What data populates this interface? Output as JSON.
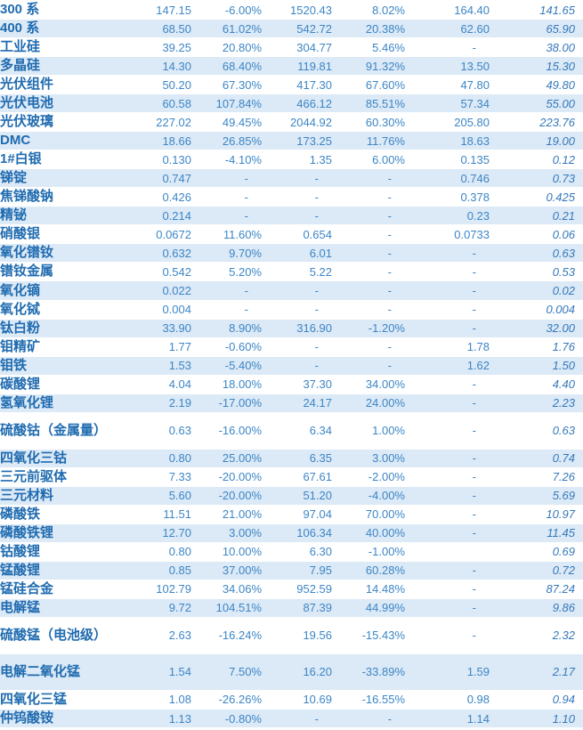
{
  "colors": {
    "row_band": "#DCE9F6",
    "label_text": "#1F6BB0",
    "value_text": "#3C86C6",
    "italic_value_text": "#3579BB"
  },
  "table": {
    "rows": [
      {
        "name": "300 系",
        "values": [
          "147.15",
          "-6.00%",
          "1520.43",
          "8.02%",
          "164.40",
          "141.65"
        ]
      },
      {
        "name": "400 系",
        "values": [
          "68.50",
          "61.02%",
          "542.72",
          "20.38%",
          "62.60",
          "65.90"
        ]
      },
      {
        "name": "工业硅",
        "values": [
          "39.25",
          "20.80%",
          "304.77",
          "5.46%",
          "-",
          "38.00"
        ]
      },
      {
        "name": "多晶硅",
        "values": [
          "14.30",
          "68.40%",
          "119.81",
          "91.32%",
          "13.50",
          "15.30"
        ]
      },
      {
        "name": "光伏组件",
        "values": [
          "50.20",
          "67.30%",
          "417.30",
          "67.60%",
          "47.80",
          "49.80"
        ]
      },
      {
        "name": "光伏电池",
        "values": [
          "60.58",
          "107.84%",
          "466.12",
          "85.51%",
          "57.34",
          "55.00"
        ]
      },
      {
        "name": "光伏玻璃",
        "values": [
          "227.02",
          "49.45%",
          "2044.92",
          "60.30%",
          "205.80",
          "223.76"
        ]
      },
      {
        "name": "DMC",
        "values": [
          "18.66",
          "26.85%",
          "173.25",
          "11.76%",
          "18.63",
          "19.00"
        ]
      },
      {
        "name": "1#白银",
        "values": [
          "0.130",
          "-4.10%",
          "1.35",
          "6.00%",
          "0.135",
          "0.12"
        ]
      },
      {
        "name": "锑锭",
        "values": [
          "0.747",
          "-",
          "-",
          "-",
          "0.746",
          "0.73"
        ]
      },
      {
        "name": "焦锑酸钠",
        "values": [
          "0.426",
          "-",
          "-",
          "-",
          "0.378",
          "0.425"
        ]
      },
      {
        "name": "精铋",
        "values": [
          "0.214",
          "-",
          "-",
          "-",
          "0.23",
          "0.21"
        ]
      },
      {
        "name": "硝酸银",
        "values": [
          "0.0672",
          "11.60%",
          "0.654",
          "-",
          "0.0733",
          "0.06"
        ]
      },
      {
        "name": "氧化镨钕",
        "values": [
          "0.632",
          "9.70%",
          "6.01",
          "-",
          "-",
          "0.63"
        ]
      },
      {
        "name": "镨钕金属",
        "values": [
          "0.542",
          "5.20%",
          "5.22",
          "-",
          "-",
          "0.53"
        ]
      },
      {
        "name": "氧化镝",
        "values": [
          "0.022",
          "-",
          "-",
          "-",
          "-",
          "0.02"
        ]
      },
      {
        "name": "氧化铽",
        "values": [
          "0.004",
          "-",
          "-",
          "-",
          "-",
          "0.004"
        ]
      },
      {
        "name": "钛白粉",
        "values": [
          "33.90",
          "8.90%",
          "316.90",
          "-1.20%",
          "-",
          "32.00"
        ]
      },
      {
        "name": "钼精矿",
        "values": [
          "1.77",
          "-0.60%",
          "-",
          "-",
          "1.78",
          "1.76"
        ]
      },
      {
        "name": "钼铁",
        "values": [
          "1.53",
          "-5.40%",
          "-",
          "-",
          "1.62",
          "1.50"
        ]
      },
      {
        "name": "碳酸锂",
        "values": [
          "4.04",
          "18.00%",
          "37.30",
          "34.00%",
          "-",
          "4.40"
        ]
      },
      {
        "name": "氢氧化锂",
        "values": [
          "2.19",
          "-17.00%",
          "24.17",
          "24.00%",
          "-",
          "2.23"
        ]
      },
      {
        "name": "硫酸钴（金属量）",
        "values": [
          "0.63",
          "-16.00%",
          "6.34",
          "1.00%",
          "-",
          "0.63"
        ]
      },
      {
        "name": "四氧化三钴",
        "values": [
          "0.80",
          "25.00%",
          "6.35",
          "3.00%",
          "-",
          "0.74"
        ]
      },
      {
        "name": "三元前驱体",
        "values": [
          "7.33",
          "-20.00%",
          "67.61",
          "-2.00%",
          "-",
          "7.26"
        ]
      },
      {
        "name": "三元材料",
        "values": [
          "5.60",
          "-20.00%",
          "51.20",
          "-4.00%",
          "-",
          "5.69"
        ]
      },
      {
        "name": "磷酸铁",
        "values": [
          "11.51",
          "21.00%",
          "97.04",
          "70.00%",
          "-",
          "10.97"
        ]
      },
      {
        "name": "磷酸铁锂",
        "values": [
          "12.70",
          "3.00%",
          "106.34",
          "40.00%",
          "-",
          "11.45"
        ]
      },
      {
        "name": "钴酸锂",
        "values": [
          "0.80",
          "10.00%",
          "6.30",
          "-1.00%",
          "",
          "0.69"
        ]
      },
      {
        "name": "锰酸锂",
        "values": [
          "0.85",
          "37.00%",
          "7.95",
          "60.28%",
          "-",
          "0.72"
        ]
      },
      {
        "name": "锰硅合金",
        "values": [
          "102.79",
          "34.06%",
          "952.59",
          "14.48%",
          "-",
          "87.24"
        ]
      },
      {
        "name": "电解锰",
        "values": [
          "9.72",
          "104.51%",
          "87.39",
          "44.99%",
          "-",
          "9.86"
        ]
      },
      {
        "name": "硫酸锰（电池级）",
        "values": [
          "2.63",
          "-16.24%",
          "19.56",
          "-15.43%",
          "-",
          "2.32"
        ]
      },
      {
        "name": "电解二氧化锰",
        "values": [
          "1.54",
          "7.50%",
          "16.20",
          "-33.89%",
          "1.59",
          "2.17"
        ]
      },
      {
        "name": "四氧化三锰",
        "values": [
          "1.08",
          "-26.26%",
          "10.69",
          "-16.55%",
          "0.98",
          "0.94"
        ]
      },
      {
        "name": "仲钨酸铵",
        "values": [
          "1.13",
          "-0.80%",
          "-",
          "-",
          "1.14",
          "1.10"
        ]
      }
    ]
  }
}
